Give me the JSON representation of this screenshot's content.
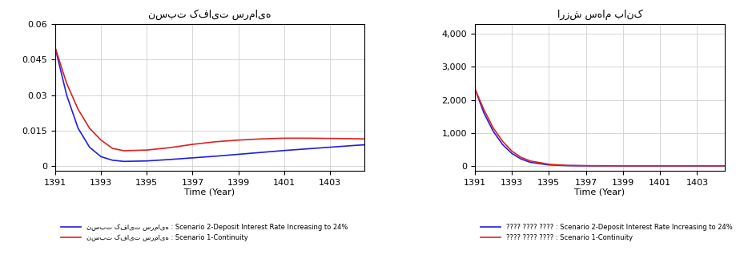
{
  "chart_data": [
    {
      "type": "line",
      "title": "نسبت کفایت سرمایه",
      "xlabel": "Time (Year)",
      "x": [
        1391,
        1391.5,
        1392,
        1392.5,
        1393,
        1393.5,
        1394,
        1395,
        1396,
        1397,
        1398,
        1399,
        1400,
        1401,
        1402,
        1403,
        1404,
        1404.5
      ],
      "xlim": [
        1391,
        1404.5
      ],
      "xticks": [
        1391,
        1393,
        1395,
        1397,
        1399,
        1401,
        1403
      ],
      "ylim": [
        -0.002,
        0.06
      ],
      "yticks": [
        0,
        0.015,
        0.03,
        0.045,
        0.06
      ],
      "grid": true,
      "legend": "lower left",
      "series": [
        {
          "name": "نسبت کفایت سرمایه : Scenario 2-Deposit Interest Rate Increasing to 24%",
          "color": "#1f1fe0",
          "values": [
            0.05,
            0.03,
            0.016,
            0.008,
            0.004,
            0.0025,
            0.002,
            0.0022,
            0.0028,
            0.0035,
            0.0042,
            0.005,
            0.0058,
            0.0066,
            0.0073,
            0.008,
            0.0087,
            0.009
          ]
        },
        {
          "name": "نسبت کفایت سرمایه : Scenario 1-Continuity",
          "color": "#e01f1f",
          "values": [
            0.05,
            0.035,
            0.024,
            0.016,
            0.011,
            0.0075,
            0.0065,
            0.0068,
            0.0078,
            0.0092,
            0.0103,
            0.011,
            0.0115,
            0.0118,
            0.0118,
            0.0117,
            0.0116,
            0.0115
          ]
        }
      ]
    },
    {
      "type": "line",
      "title": "ارزش سهام بانک",
      "xlabel": "Time (Year)",
      "x": [
        1391,
        1391.5,
        1392,
        1392.5,
        1393,
        1393.5,
        1394,
        1395,
        1396,
        1397,
        1398,
        1399,
        1400,
        1401,
        1402,
        1403,
        1404,
        1404.5
      ],
      "xlim": [
        1391,
        1404.5
      ],
      "xticks": [
        1391,
        1393,
        1395,
        1397,
        1399,
        1401,
        1403
      ],
      "ylim": [
        -150,
        4300
      ],
      "yticks": [
        0,
        {
          "value": 1000,
          "label": "1,000"
        },
        {
          "value": 2000,
          "label": "2,000"
        },
        {
          "value": 3000,
          "label": "3,000"
        },
        {
          "value": 4000,
          "label": "4,000"
        }
      ],
      "grid": true,
      "legend": "lower left",
      "series": [
        {
          "name": "???? ???? ???? : Scenario 2-Deposit Interest Rate Increasing to 24%",
          "color": "#1f1fe0",
          "values": [
            2350,
            1600,
            1050,
            650,
            380,
            210,
            110,
            30,
            10,
            5,
            3,
            2,
            2,
            2,
            2,
            2,
            2,
            2
          ]
        },
        {
          "name": "???? ???? ???? : Scenario 1-Continuity",
          "color": "#e01f1f",
          "values": [
            2350,
            1700,
            1150,
            750,
            450,
            260,
            150,
            50,
            15,
            6,
            4,
            3,
            3,
            3,
            3,
            3,
            3,
            3
          ]
        }
      ]
    }
  ]
}
